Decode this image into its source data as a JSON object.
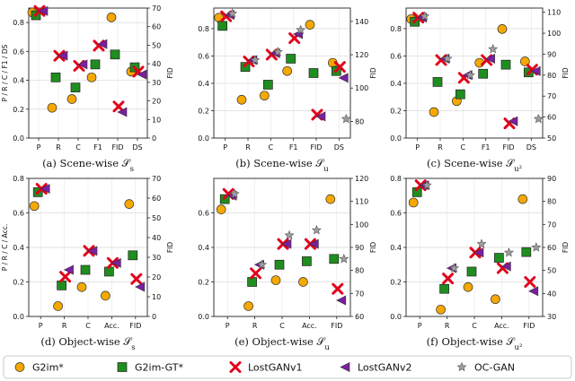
{
  "chart_data": [
    {
      "type": "scatter",
      "caption": "(a) Scene-wise 𝒮",
      "caption_sub": "s",
      "categories": [
        "P",
        "R",
        "C",
        "F1",
        "FID",
        "DS"
      ],
      "ylabel": "P / R / C / F1 / DS",
      "ylim": [
        0,
        0.9
      ],
      "yticks": [
        "0.0",
        "0.2",
        "0.4",
        "0.6",
        "0.8"
      ],
      "y2label": "FID",
      "y2lim": [
        0,
        70
      ],
      "y2ticks": [
        "0",
        "10",
        "20",
        "30",
        "40",
        "50",
        "60",
        "70"
      ],
      "series": [
        {
          "name": "G2im*",
          "values": [
            0.87,
            0.21,
            0.27,
            0.42,
            65,
            0.46
          ]
        },
        {
          "name": "G2im-GT*",
          "values": [
            0.85,
            0.42,
            0.35,
            0.51,
            45,
            0.49
          ]
        },
        {
          "name": "LostGANv1",
          "values": [
            0.88,
            0.57,
            0.5,
            0.64,
            17,
            0.46
          ]
        },
        {
          "name": "LostGANv2",
          "values": [
            0.88,
            0.57,
            0.51,
            0.65,
            14,
            0.44
          ]
        }
      ]
    },
    {
      "type": "scatter",
      "caption": "(b) Scene-wise 𝒮",
      "caption_sub": "u",
      "categories": [
        "P",
        "R",
        "C",
        "F1",
        "FID",
        "DS"
      ],
      "ylabel": "",
      "ylim": [
        0,
        0.95
      ],
      "yticks": [
        "0.0",
        "0.2",
        "0.4",
        "0.6",
        "0.8"
      ],
      "y2label": "FID",
      "y2lim": [
        70,
        148
      ],
      "y2ticks": [
        "80",
        "100",
        "120",
        "140"
      ],
      "series": [
        {
          "name": "G2im*",
          "values": [
            0.88,
            0.28,
            0.31,
            0.49,
            138,
            0.55
          ]
        },
        {
          "name": "G2im-GT*",
          "values": [
            0.82,
            0.52,
            0.39,
            0.58,
            109,
            0.49
          ]
        },
        {
          "name": "LostGANv1",
          "values": [
            0.89,
            0.56,
            0.61,
            0.73,
            84,
            0.52
          ]
        },
        {
          "name": "LostGANv2",
          "values": [
            0.9,
            0.57,
            0.62,
            0.76,
            83,
            0.44
          ]
        },
        {
          "name": "OC-GAN",
          "values": [
            0.91,
            0.57,
            0.63,
            0.79,
            null,
            0.14
          ]
        }
      ]
    },
    {
      "type": "scatter",
      "caption": "(c) Scene-wise 𝒮",
      "caption_sub": "u²",
      "categories": [
        "P",
        "R",
        "C",
        "F1",
        "FID",
        "DS"
      ],
      "ylabel": "",
      "ylim": [
        0,
        0.95
      ],
      "yticks": [
        "0.0",
        "0.2",
        "0.4",
        "0.6",
        "0.8"
      ],
      "y2label": "FID",
      "y2lim": [
        50,
        112
      ],
      "y2ticks": [
        "50",
        "60",
        "70",
        "80",
        "90",
        "100",
        "110"
      ],
      "series": [
        {
          "name": "G2im*",
          "values": [
            0.87,
            0.19,
            0.27,
            0.55,
            102,
            0.56
          ]
        },
        {
          "name": "G2im-GT*",
          "values": [
            0.85,
            0.41,
            0.32,
            0.47,
            85,
            0.48
          ]
        },
        {
          "name": "LostGANv1",
          "values": [
            0.88,
            0.57,
            0.44,
            0.57,
            57,
            0.5
          ]
        },
        {
          "name": "LostGANv2",
          "values": [
            0.88,
            0.58,
            0.46,
            0.58,
            58,
            0.49
          ]
        },
        {
          "name": "OC-GAN",
          "values": [
            0.89,
            0.58,
            0.46,
            0.65,
            null,
            0.14
          ]
        }
      ]
    },
    {
      "type": "scatter",
      "caption": "(d) Object-wise 𝒮",
      "caption_sub": "s",
      "categories": [
        "P",
        "R",
        "C",
        "Acc.",
        "FID"
      ],
      "ylabel": "P / R / C / Acc.",
      "ylim": [
        0,
        0.8
      ],
      "yticks": [
        "0.0",
        "0.2",
        "0.4",
        "0.6",
        "0.8"
      ],
      "y2label": "FID",
      "y2lim": [
        0,
        70
      ],
      "y2ticks": [
        "0",
        "10",
        "20",
        "30",
        "40",
        "50",
        "60",
        "70"
      ],
      "series": [
        {
          "name": "G2im*",
          "values": [
            0.64,
            0.06,
            0.17,
            0.12,
            57
          ]
        },
        {
          "name": "G2im-GT*",
          "values": [
            0.72,
            0.18,
            0.27,
            0.26,
            31
          ]
        },
        {
          "name": "LostGANv1",
          "values": [
            0.74,
            0.23,
            0.38,
            0.31,
            19
          ]
        },
        {
          "name": "LostGANv2",
          "values": [
            0.74,
            0.27,
            0.38,
            0.31,
            15
          ]
        }
      ]
    },
    {
      "type": "scatter",
      "caption": "(e) Object-wise 𝒮",
      "caption_sub": "u",
      "categories": [
        "P",
        "R",
        "C",
        "Acc.",
        "FID"
      ],
      "ylabel": "",
      "ylim": [
        0,
        0.8
      ],
      "yticks": [
        "0.0",
        "0.2",
        "0.4",
        "0.6"
      ],
      "y2label": "FID",
      "y2lim": [
        60,
        120
      ],
      "y2ticks": [
        "60",
        "70",
        "80",
        "90",
        "100",
        "110",
        "120"
      ],
      "series": [
        {
          "name": "G2im*",
          "values": [
            0.62,
            0.06,
            0.21,
            0.2,
            111
          ]
        },
        {
          "name": "G2im-GT*",
          "values": [
            0.68,
            0.2,
            0.3,
            0.32,
            85
          ]
        },
        {
          "name": "LostGANv1",
          "values": [
            0.71,
            0.25,
            0.42,
            0.42,
            72
          ]
        },
        {
          "name": "LostGANv2",
          "values": [
            0.7,
            0.3,
            0.42,
            0.42,
            67
          ]
        },
        {
          "name": "OC-GAN",
          "values": [
            0.71,
            0.3,
            0.47,
            0.5,
            85
          ]
        }
      ]
    },
    {
      "type": "scatter",
      "caption": "(f) Object-wise 𝒮",
      "caption_sub": "u²",
      "categories": [
        "P",
        "R",
        "C",
        "Acc.",
        "FID"
      ],
      "ylabel": "",
      "ylim": [
        0,
        0.8
      ],
      "yticks": [
        "0.0",
        "0.2",
        "0.4",
        "0.6",
        "0.8"
      ],
      "y2label": "FID",
      "y2lim": [
        30,
        90
      ],
      "y2ticks": [
        "30",
        "40",
        "50",
        "60",
        "70",
        "80",
        "90"
      ],
      "series": [
        {
          "name": "G2im*",
          "values": [
            0.66,
            0.04,
            0.17,
            0.1,
            81
          ]
        },
        {
          "name": "G2im-GT*",
          "values": [
            0.72,
            0.16,
            0.26,
            0.34,
            58
          ]
        },
        {
          "name": "LostGANv1",
          "values": [
            0.76,
            0.22,
            0.37,
            0.28,
            45
          ]
        },
        {
          "name": "LostGANv2",
          "values": [
            0.76,
            0.28,
            0.37,
            0.29,
            41
          ]
        },
        {
          "name": "OC-GAN",
          "values": [
            0.76,
            0.28,
            0.42,
            0.37,
            60
          ]
        }
      ]
    }
  ],
  "legend": {
    "items": [
      {
        "name": "G2im*",
        "marker": "circle",
        "color": "#f5a800"
      },
      {
        "name": "G2im-GT*",
        "marker": "square",
        "color": "#1f8e1f"
      },
      {
        "name": "LostGANv1",
        "marker": "x",
        "color": "#e3001b"
      },
      {
        "name": "LostGANv2",
        "marker": "triangle-left",
        "color": "#7b1fa2"
      },
      {
        "name": "OC-GAN",
        "marker": "star",
        "color": "#9e9e9e"
      }
    ]
  }
}
